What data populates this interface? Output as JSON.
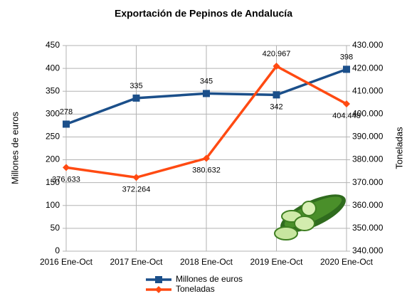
{
  "chart_data": {
    "type": "line",
    "title": "Exportación de Pepinos de Andalucía",
    "categories": [
      "2016 Ene-Oct",
      "2017 Ene-Oct",
      "2018 Ene-Oct",
      "2019 Ene-Oct",
      "2020 Ene-Oct"
    ],
    "series": [
      {
        "name": "Millones de euros",
        "color": "#1b4f8a",
        "values": [
          278,
          335,
          345,
          342,
          398
        ]
      },
      {
        "name": "Toneladas",
        "color": "#ff4a12",
        "axis": "y2",
        "values": [
          376633,
          372264,
          380632,
          420967,
          404448
        ],
        "value_labels": [
          "376.633",
          "372.264",
          "380.632",
          "420.967",
          "404.448"
        ]
      }
    ],
    "ylabel": "Millones de euros",
    "y2label": "Toneladas",
    "ylim": [
      0,
      450
    ],
    "yticks": [
      0,
      50,
      100,
      150,
      200,
      250,
      300,
      350,
      400,
      450
    ],
    "y2lim": [
      340000,
      430000
    ],
    "y2ticks": [
      {
        "value": 340000,
        "label": "340.000"
      },
      {
        "value": 350000,
        "label": "350.000"
      },
      {
        "value": 360000,
        "label": "360.000"
      },
      {
        "value": 370000,
        "label": "370.000"
      },
      {
        "value": 380000,
        "label": "380.000"
      },
      {
        "value": 390000,
        "label": "390.000"
      },
      {
        "value": 400000,
        "label": "400.000"
      },
      {
        "value": 410000,
        "label": "410.000"
      },
      {
        "value": 420000,
        "label": "420.000"
      },
      {
        "value": 430000,
        "label": "430.000"
      }
    ],
    "grid": true,
    "legend": "bottom"
  }
}
